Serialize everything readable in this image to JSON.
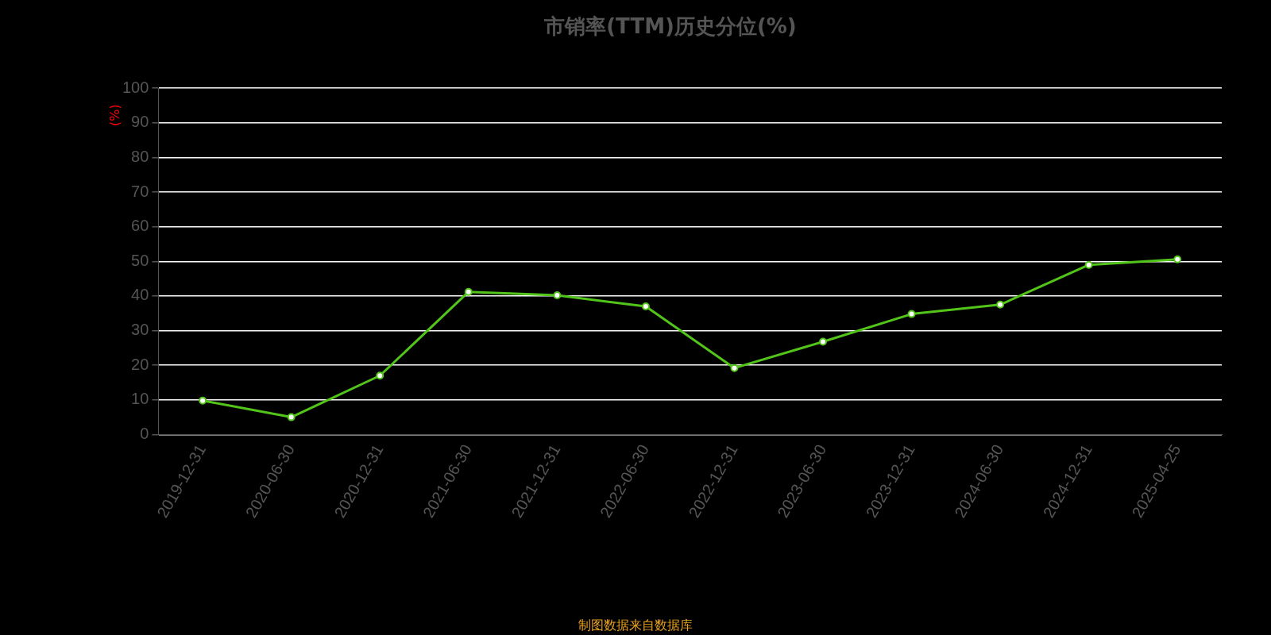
{
  "chart_data": {
    "type": "line",
    "title": "市销率(TTM)历史分位(%)",
    "ylabel": "(%)",
    "categories": [
      "2019-12-31",
      "2020-06-30",
      "2020-12-31",
      "2021-06-30",
      "2021-12-31",
      "2022-06-30",
      "2022-12-31",
      "2023-06-30",
      "2023-12-31",
      "2024-06-30",
      "2024-12-31",
      "2025-04-25"
    ],
    "series": [
      {
        "color": "#52c41a",
        "values": [
          9.8,
          5.0,
          17.0,
          41.2,
          40.2,
          37.0,
          19.2,
          26.8,
          34.8,
          37.5,
          49.0,
          50.6
        ]
      }
    ],
    "ylim": [
      0,
      100
    ],
    "yticks": [
      0,
      10,
      20,
      30,
      40,
      50,
      60,
      70,
      80,
      90,
      100
    ],
    "grid": "y",
    "legend": false,
    "marker": "circle",
    "line_style": "solid",
    "annotations": [
      "制图数据来自数据库"
    ]
  }
}
